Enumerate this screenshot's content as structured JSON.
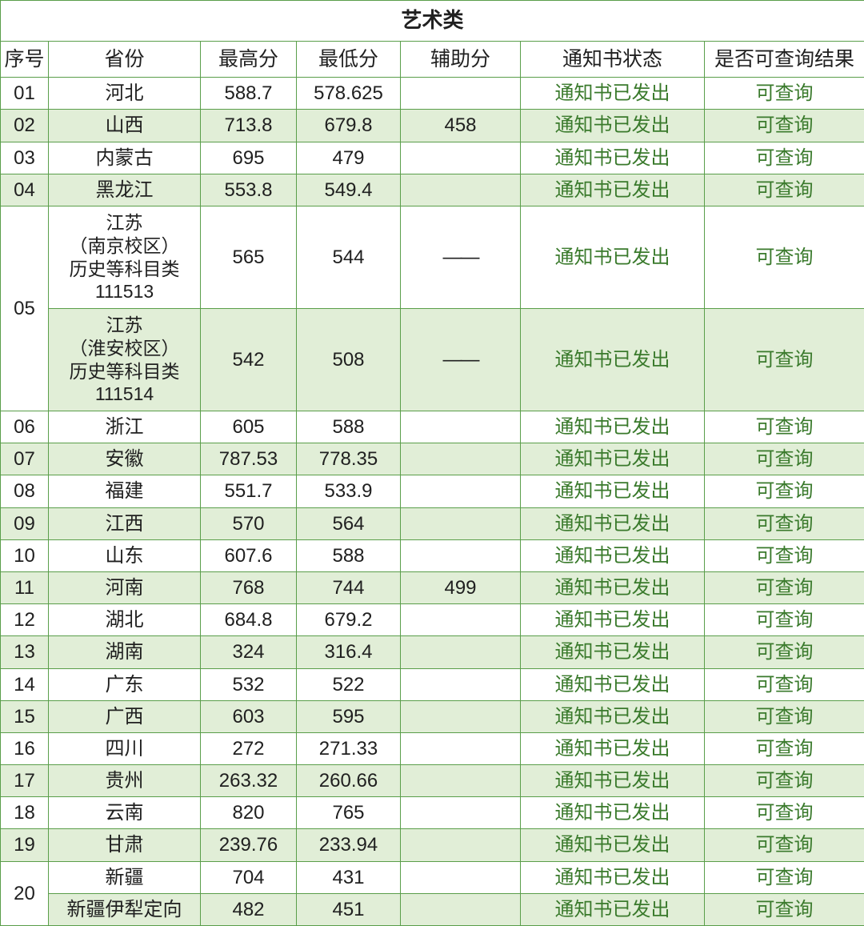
{
  "title": "艺术类",
  "columns": {
    "seq": "序号",
    "province": "省份",
    "max": "最高分",
    "min": "最低分",
    "aux": "辅助分",
    "status": "通知书状态",
    "query": "是否可查询结果"
  },
  "colors": {
    "border": "#5a9e4a",
    "even_row_bg": "#e1eed7",
    "odd_row_bg": "#ffffff",
    "text_black": "#202020",
    "text_green": "#3a7a2c"
  },
  "rows": [
    {
      "seq": "01",
      "prov": "河北",
      "max": "588.7",
      "min": "578.625",
      "aux": "",
      "status": "通知书已发出",
      "query": "可查询",
      "stripe": "odd"
    },
    {
      "seq": "02",
      "prov": "山西",
      "max": "713.8",
      "min": "679.8",
      "aux": "458",
      "status": "通知书已发出",
      "query": "可查询",
      "stripe": "even"
    },
    {
      "seq": "03",
      "prov": "内蒙古",
      "max": "695",
      "min": "479",
      "aux": "",
      "status": "通知书已发出",
      "query": "可查询",
      "stripe": "odd"
    },
    {
      "seq": "04",
      "prov": "黑龙江",
      "max": "553.8",
      "min": "549.4",
      "aux": "",
      "status": "通知书已发出",
      "query": "可查询",
      "stripe": "even"
    }
  ],
  "row05": {
    "seq": "05",
    "sub1": {
      "prov_l1": "江苏",
      "prov_l2": "（南京校区）",
      "prov_l3": "历史等科目类",
      "prov_l4": "111513",
      "max": "565",
      "min": "544",
      "aux": "——",
      "status": "通知书已发出",
      "query": "可查询",
      "stripe": "odd"
    },
    "sub2": {
      "prov_l1": "江苏",
      "prov_l2": "（淮安校区）",
      "prov_l3": "历史等科目类",
      "prov_l4": "111514",
      "max": "542",
      "min": "508",
      "aux": "——",
      "status": "通知书已发出",
      "query": "可查询",
      "stripe": "even"
    }
  },
  "rows2": [
    {
      "seq": "06",
      "prov": "浙江",
      "max": "605",
      "min": "588",
      "aux": "",
      "status": "通知书已发出",
      "query": "可查询",
      "stripe": "odd"
    },
    {
      "seq": "07",
      "prov": "安徽",
      "max": "787.53",
      "min": "778.35",
      "aux": "",
      "status": "通知书已发出",
      "query": "可查询",
      "stripe": "even"
    },
    {
      "seq": "08",
      "prov": "福建",
      "max": "551.7",
      "min": "533.9",
      "aux": "",
      "status": "通知书已发出",
      "query": "可查询",
      "stripe": "odd"
    },
    {
      "seq": "09",
      "prov": "江西",
      "max": "570",
      "min": "564",
      "aux": "",
      "status": "通知书已发出",
      "query": "可查询",
      "stripe": "even"
    },
    {
      "seq": "10",
      "prov": "山东",
      "max": "607.6",
      "min": "588",
      "aux": "",
      "status": "通知书已发出",
      "query": "可查询",
      "stripe": "odd"
    },
    {
      "seq": "11",
      "prov": "河南",
      "max": "768",
      "min": "744",
      "aux": "499",
      "status": "通知书已发出",
      "query": "可查询",
      "stripe": "even"
    },
    {
      "seq": "12",
      "prov": "湖北",
      "max": "684.8",
      "min": "679.2",
      "aux": "",
      "status": "通知书已发出",
      "query": "可查询",
      "stripe": "odd"
    },
    {
      "seq": "13",
      "prov": "湖南",
      "max": "324",
      "min": "316.4",
      "aux": "",
      "status": "通知书已发出",
      "query": "可查询",
      "stripe": "even"
    },
    {
      "seq": "14",
      "prov": "广东",
      "max": "532",
      "min": "522",
      "aux": "",
      "status": "通知书已发出",
      "query": "可查询",
      "stripe": "odd"
    },
    {
      "seq": "15",
      "prov": "广西",
      "max": "603",
      "min": "595",
      "aux": "",
      "status": "通知书已发出",
      "query": "可查询",
      "stripe": "even"
    },
    {
      "seq": "16",
      "prov": "四川",
      "max": "272",
      "min": "271.33",
      "aux": "",
      "status": "通知书已发出",
      "query": "可查询",
      "stripe": "odd"
    },
    {
      "seq": "17",
      "prov": "贵州",
      "max": "263.32",
      "min": "260.66",
      "aux": "",
      "status": "通知书已发出",
      "query": "可查询",
      "stripe": "even"
    },
    {
      "seq": "18",
      "prov": "云南",
      "max": "820",
      "min": "765",
      "aux": "",
      "status": "通知书已发出",
      "query": "可查询",
      "stripe": "odd"
    },
    {
      "seq": "19",
      "prov": "甘肃",
      "max": "239.76",
      "min": "233.94",
      "aux": "",
      "status": "通知书已发出",
      "query": "可查询",
      "stripe": "even"
    }
  ],
  "row20": {
    "seq": "20",
    "sub1": {
      "prov": "新疆",
      "max": "704",
      "min": "431",
      "aux": "",
      "status": "通知书已发出",
      "query": "可查询",
      "stripe": "odd"
    },
    "sub2": {
      "prov": "新疆伊犁定向",
      "max": "482",
      "min": "451",
      "aux": "",
      "status": "通知书已发出",
      "query": "可查询",
      "stripe": "even"
    }
  }
}
